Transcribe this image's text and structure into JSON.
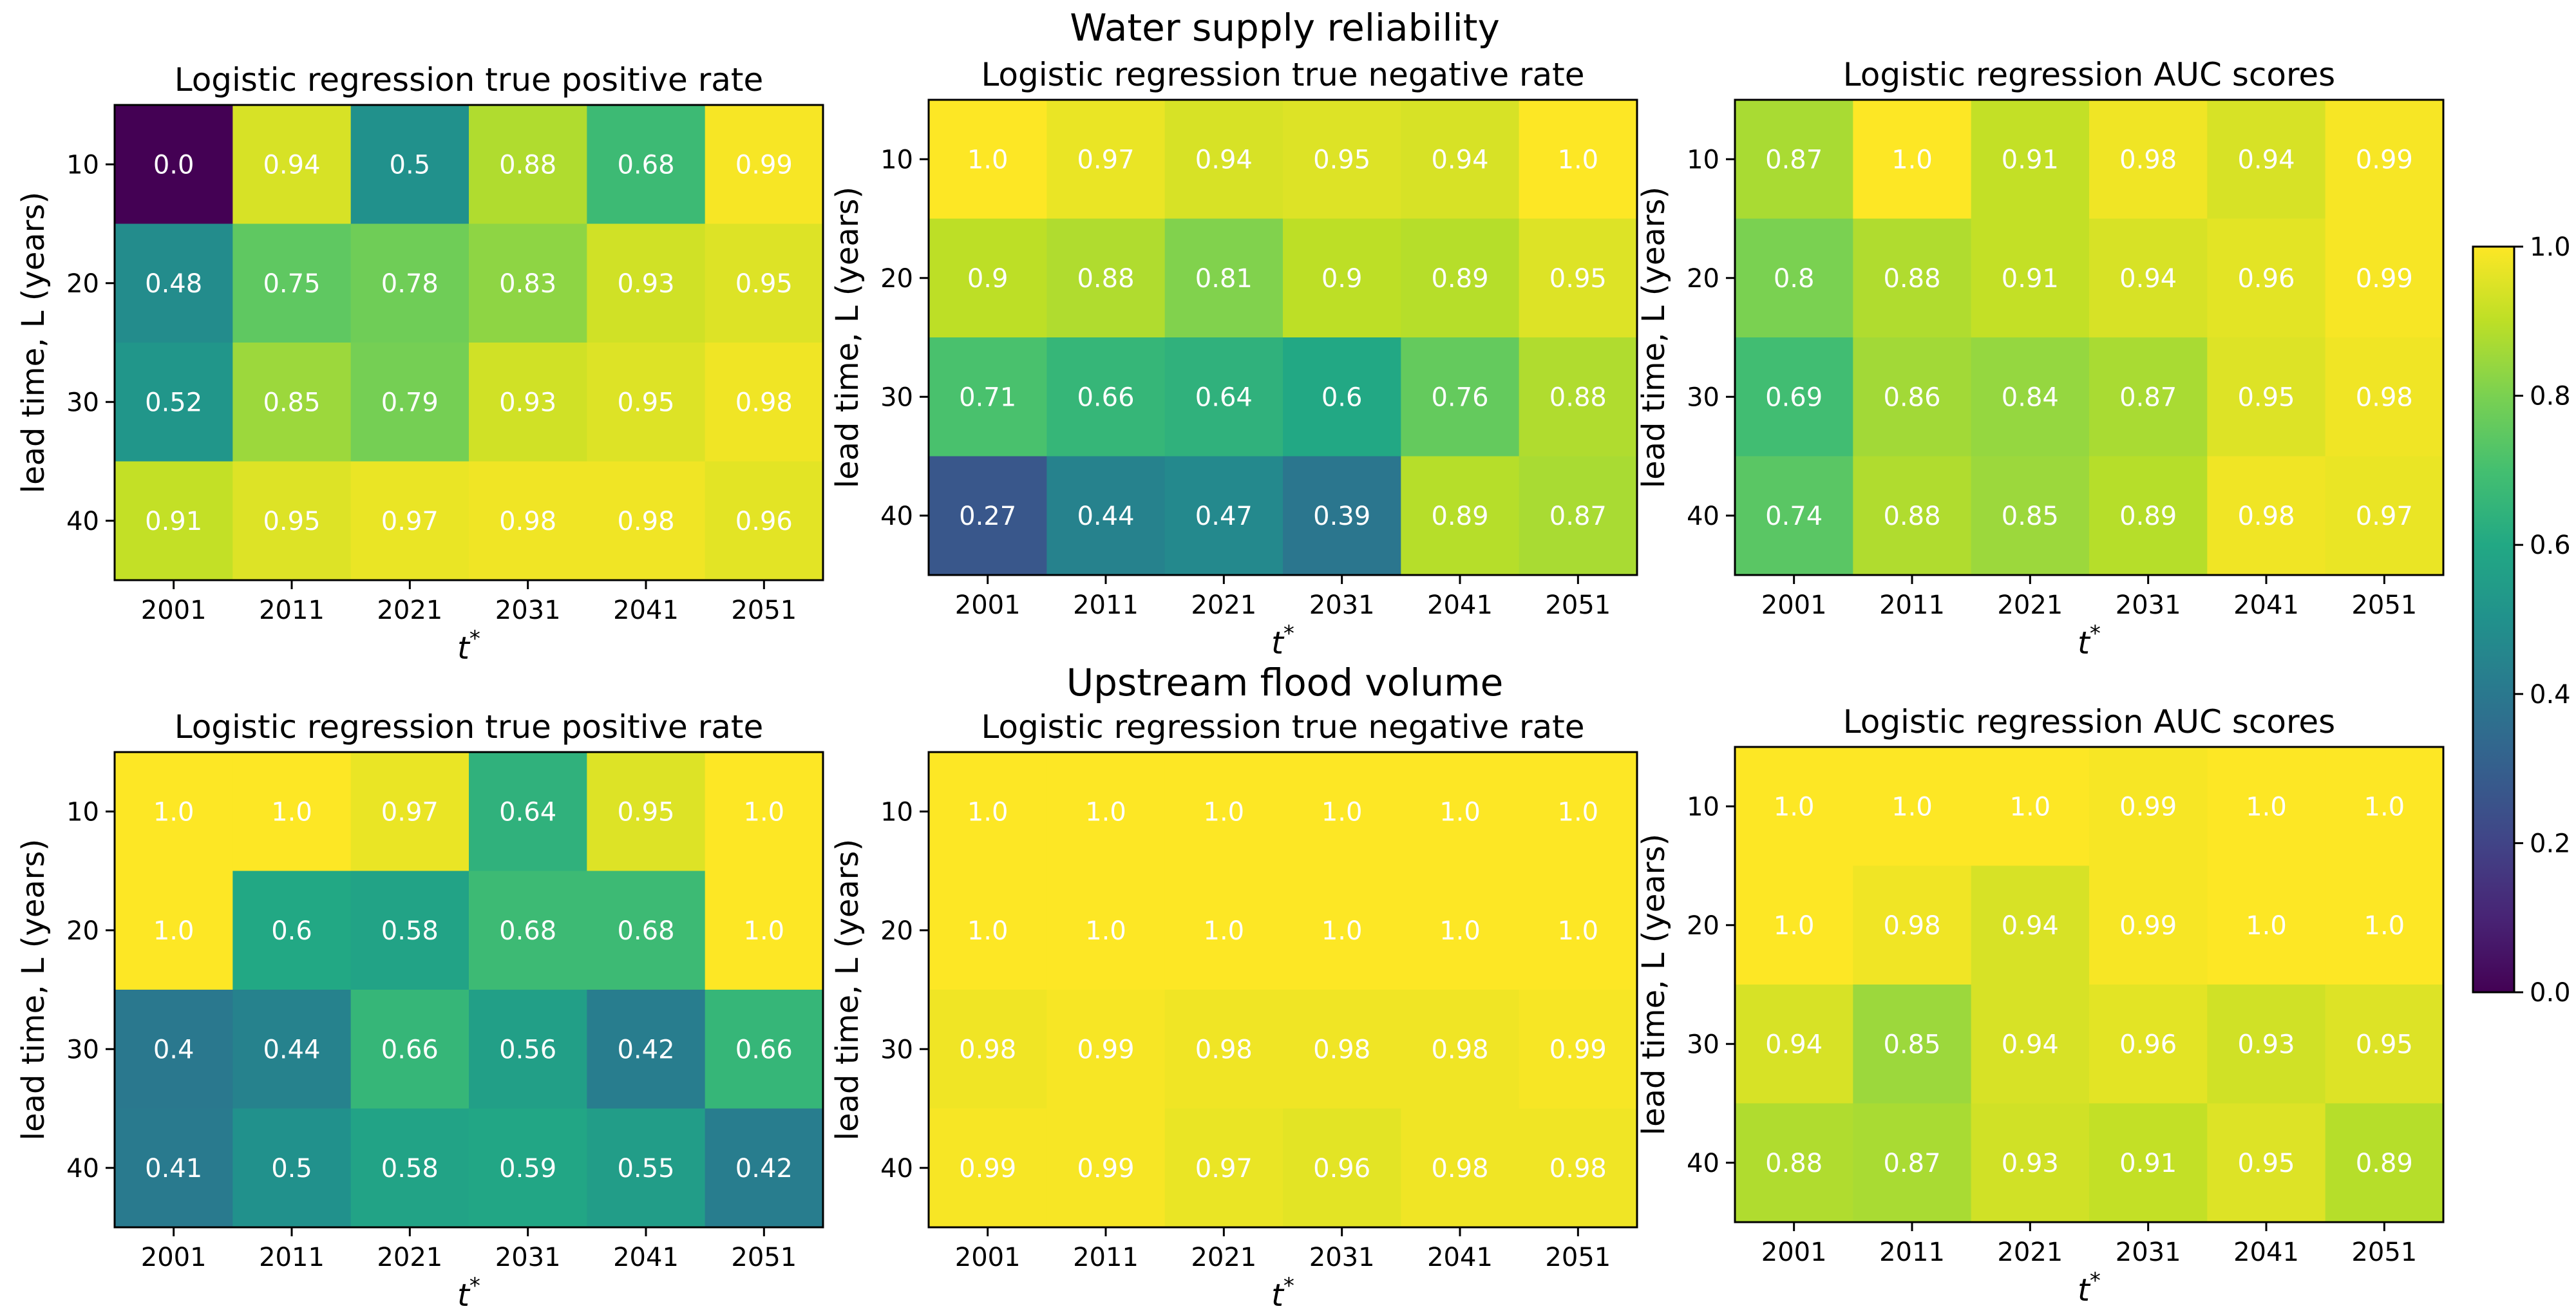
{
  "suptitles": [
    "Water supply reliability",
    "Upstream flood volume"
  ],
  "colorbar": {
    "vmin": 0.0,
    "vmax": 1.0,
    "ticks": [
      "0.0",
      "0.2",
      "0.4",
      "0.6",
      "0.8",
      "1.0"
    ],
    "colormap": "viridis"
  },
  "chart_data": [
    {
      "type": "heatmap",
      "section": "Water supply reliability",
      "title": "Logistic regression true positive rate",
      "xlabel": "t*",
      "ylabel": "lead time, L (years)",
      "x": [
        "2001",
        "2011",
        "2021",
        "2031",
        "2041",
        "2051"
      ],
      "y": [
        "10",
        "20",
        "30",
        "40"
      ],
      "values": [
        [
          0.0,
          0.94,
          0.5,
          0.88,
          0.68,
          0.99
        ],
        [
          0.48,
          0.75,
          0.78,
          0.83,
          0.93,
          0.95
        ],
        [
          0.52,
          0.85,
          0.79,
          0.93,
          0.95,
          0.98
        ],
        [
          0.91,
          0.95,
          0.97,
          0.98,
          0.98,
          0.96
        ]
      ],
      "labels": [
        [
          "0.0",
          "0.94",
          "0.5",
          "0.88",
          "0.68",
          "0.99"
        ],
        [
          "0.48",
          "0.75",
          "0.78",
          "0.83",
          "0.93",
          "0.95"
        ],
        [
          "0.52",
          "0.85",
          "0.79",
          "0.93",
          "0.95",
          "0.98"
        ],
        [
          "0.91",
          "0.95",
          "0.97",
          "0.98",
          "0.98",
          "0.96"
        ]
      ]
    },
    {
      "type": "heatmap",
      "section": "Water supply reliability",
      "title": "Logistic regression true negative rate",
      "xlabel": "t*",
      "ylabel": "lead time, L (years)",
      "x": [
        "2001",
        "2011",
        "2021",
        "2031",
        "2041",
        "2051"
      ],
      "y": [
        "10",
        "20",
        "30",
        "40"
      ],
      "values": [
        [
          1.0,
          0.97,
          0.94,
          0.95,
          0.94,
          1.0
        ],
        [
          0.9,
          0.88,
          0.81,
          0.9,
          0.89,
          0.95
        ],
        [
          0.71,
          0.66,
          0.64,
          0.6,
          0.76,
          0.88
        ],
        [
          0.27,
          0.44,
          0.47,
          0.39,
          0.89,
          0.87
        ]
      ],
      "labels": [
        [
          "1.0",
          "0.97",
          "0.94",
          "0.95",
          "0.94",
          "1.0"
        ],
        [
          "0.9",
          "0.88",
          "0.81",
          "0.9",
          "0.89",
          "0.95"
        ],
        [
          "0.71",
          "0.66",
          "0.64",
          "0.6",
          "0.76",
          "0.88"
        ],
        [
          "0.27",
          "0.44",
          "0.47",
          "0.39",
          "0.89",
          "0.87"
        ]
      ]
    },
    {
      "type": "heatmap",
      "section": "Water supply reliability",
      "title": "Logistic regression AUC scores",
      "xlabel": "t*",
      "ylabel": "lead time, L (years)",
      "x": [
        "2001",
        "2011",
        "2021",
        "2031",
        "2041",
        "2051"
      ],
      "y": [
        "10",
        "20",
        "30",
        "40"
      ],
      "values": [
        [
          0.87,
          1.0,
          0.91,
          0.98,
          0.94,
          0.99
        ],
        [
          0.8,
          0.88,
          0.91,
          0.94,
          0.96,
          0.99
        ],
        [
          0.69,
          0.86,
          0.84,
          0.87,
          0.95,
          0.98
        ],
        [
          0.74,
          0.88,
          0.85,
          0.89,
          0.98,
          0.97
        ]
      ],
      "labels": [
        [
          "0.87",
          "1.0",
          "0.91",
          "0.98",
          "0.94",
          "0.99"
        ],
        [
          "0.8",
          "0.88",
          "0.91",
          "0.94",
          "0.96",
          "0.99"
        ],
        [
          "0.69",
          "0.86",
          "0.84",
          "0.87",
          "0.95",
          "0.98"
        ],
        [
          "0.74",
          "0.88",
          "0.85",
          "0.89",
          "0.98",
          "0.97"
        ]
      ]
    },
    {
      "type": "heatmap",
      "section": "Upstream flood volume",
      "title": "Logistic regression true positive rate",
      "xlabel": "t*",
      "ylabel": "lead time, L (years)",
      "x": [
        "2001",
        "2011",
        "2021",
        "2031",
        "2041",
        "2051"
      ],
      "y": [
        "10",
        "20",
        "30",
        "40"
      ],
      "values": [
        [
          1.0,
          1.0,
          0.97,
          0.64,
          0.95,
          1.0
        ],
        [
          1.0,
          0.6,
          0.58,
          0.68,
          0.68,
          1.0
        ],
        [
          0.4,
          0.44,
          0.66,
          0.56,
          0.42,
          0.66
        ],
        [
          0.41,
          0.5,
          0.58,
          0.59,
          0.55,
          0.42
        ]
      ],
      "labels": [
        [
          "1.0",
          "1.0",
          "0.97",
          "0.64",
          "0.95",
          "1.0"
        ],
        [
          "1.0",
          "0.6",
          "0.58",
          "0.68",
          "0.68",
          "1.0"
        ],
        [
          "0.4",
          "0.44",
          "0.66",
          "0.56",
          "0.42",
          "0.66"
        ],
        [
          "0.41",
          "0.5",
          "0.58",
          "0.59",
          "0.55",
          "0.42"
        ]
      ]
    },
    {
      "type": "heatmap",
      "section": "Upstream flood volume",
      "title": "Logistic regression true negative rate",
      "xlabel": "t*",
      "ylabel": "lead time, L (years)",
      "x": [
        "2001",
        "2011",
        "2021",
        "2031",
        "2041",
        "2051"
      ],
      "y": [
        "10",
        "20",
        "30",
        "40"
      ],
      "values": [
        [
          1.0,
          1.0,
          1.0,
          1.0,
          1.0,
          1.0
        ],
        [
          1.0,
          1.0,
          1.0,
          1.0,
          1.0,
          1.0
        ],
        [
          0.98,
          0.99,
          0.98,
          0.98,
          0.98,
          0.99
        ],
        [
          0.99,
          0.99,
          0.97,
          0.96,
          0.98,
          0.98
        ]
      ],
      "labels": [
        [
          "1.0",
          "1.0",
          "1.0",
          "1.0",
          "1.0",
          "1.0"
        ],
        [
          "1.0",
          "1.0",
          "1.0",
          "1.0",
          "1.0",
          "1.0"
        ],
        [
          "0.98",
          "0.99",
          "0.98",
          "0.98",
          "0.98",
          "0.99"
        ],
        [
          "0.99",
          "0.99",
          "0.97",
          "0.96",
          "0.98",
          "0.98"
        ]
      ]
    },
    {
      "type": "heatmap",
      "section": "Upstream flood volume",
      "title": "Logistic regression AUC scores",
      "xlabel": "t*",
      "ylabel": "lead time, L (years)",
      "x": [
        "2001",
        "2011",
        "2021",
        "2031",
        "2041",
        "2051"
      ],
      "y": [
        "10",
        "20",
        "30",
        "40"
      ],
      "values": [
        [
          1.0,
          1.0,
          1.0,
          0.99,
          1.0,
          1.0
        ],
        [
          1.0,
          0.98,
          0.94,
          0.99,
          1.0,
          1.0
        ],
        [
          0.94,
          0.85,
          0.94,
          0.96,
          0.93,
          0.95
        ],
        [
          0.88,
          0.87,
          0.93,
          0.91,
          0.95,
          0.89
        ]
      ],
      "labels": [
        [
          "1.0",
          "1.0",
          "1.0",
          "0.99",
          "1.0",
          "1.0"
        ],
        [
          "1.0",
          "0.98",
          "0.94",
          "0.99",
          "1.0",
          "1.0"
        ],
        [
          "0.94",
          "0.85",
          "0.94",
          "0.96",
          "0.93",
          "0.95"
        ],
        [
          "0.88",
          "0.87",
          "0.93",
          "0.91",
          "0.95",
          "0.89"
        ]
      ]
    }
  ]
}
